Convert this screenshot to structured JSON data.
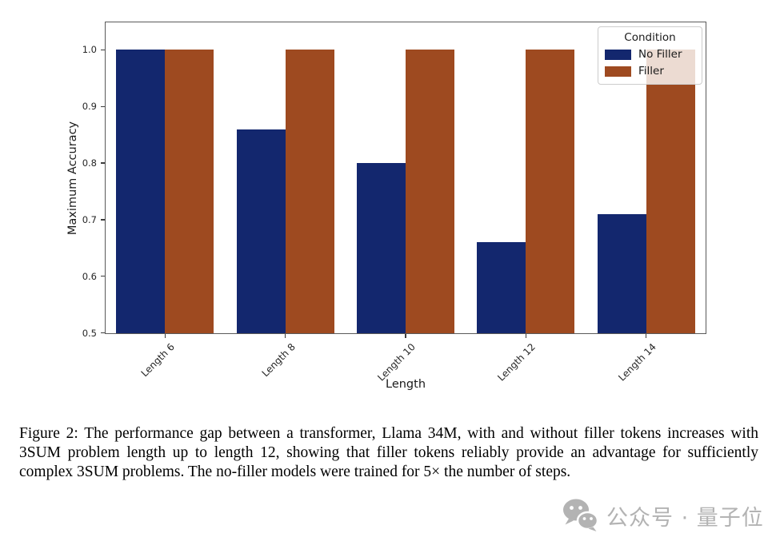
{
  "chart_data": {
    "type": "bar",
    "title": "",
    "categories": [
      "Length 6",
      "Length 8",
      "Length 10",
      "Length 12",
      "Length 14"
    ],
    "series": [
      {
        "name": "No Filler",
        "color": "#13276e",
        "values": [
          1.0,
          0.86,
          0.8,
          0.66,
          0.71
        ]
      },
      {
        "name": "Filler",
        "color": "#9e4a20",
        "values": [
          1.0,
          1.0,
          1.0,
          1.0,
          1.0
        ]
      }
    ],
    "xlabel": "Length",
    "ylabel": "Maximum Accuracy",
    "ylim": [
      0.498,
      1.05
    ],
    "yticks": [
      0.5,
      0.6,
      0.7,
      0.8,
      0.9,
      1.0
    ],
    "ytick_format_decimals": 1,
    "legend": {
      "title": "Condition",
      "position": "upper-right",
      "background": "rgba(255,255,255,0.8)"
    },
    "grid": false,
    "bar_gap_within_group": 0
  },
  "caption": {
    "text": "Figure 2: The performance gap between a transformer, Llama 34M, with and without filler tokens increases with 3SUM problem length up to length 12, showing that filler tokens reliably provide an advantage for sufficiently complex 3SUM problems. The no-filler models were trained for 5× the number of steps."
  },
  "watermark": {
    "icon": "wechat-icon",
    "text": "公众号 · 量子位",
    "color": "#b3b3b3"
  }
}
